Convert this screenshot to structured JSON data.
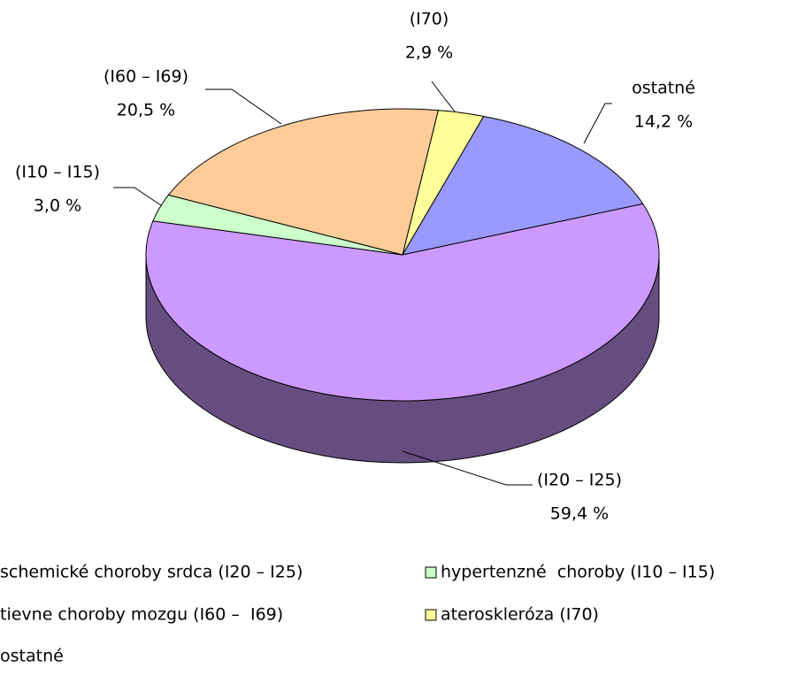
{
  "chart_data": {
    "type": "pie",
    "categories": [
      "(I20 – I25)",
      "(I10 – I15)",
      "(I60 – I69)",
      "(I70)",
      "ostatné"
    ],
    "values": [
      59.4,
      3.0,
      20.5,
      2.9,
      14.2
    ],
    "value_labels": [
      "59,4 %",
      "3,0 %",
      "20,5 %",
      "2,9 %",
      "14,2 %"
    ],
    "colors": [
      "#cc99ff",
      "#ccffcc",
      "#ffcc99",
      "#ffff99",
      "#9999ff"
    ],
    "legend": [
      "schemické choroby srdca (I20 – I25)",
      "hypertenzné  choroby (I10 – I15)",
      "tievne choroby mozgu (I60 –  I69)",
      "ateroskleróza (I70)",
      "ostatné"
    ]
  }
}
